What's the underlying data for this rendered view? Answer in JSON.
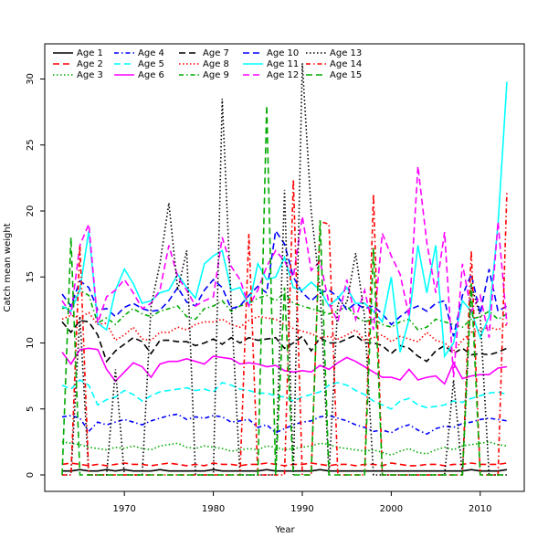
{
  "chart_data": {
    "type": "line",
    "title": "",
    "xlabel": "Year",
    "ylabel": "Catch mean weight",
    "xlim": [
      1963,
      2013
    ],
    "ylim": [
      -1,
      32
    ],
    "x_ticks": [
      1970,
      1980,
      1990,
      2000,
      2010
    ],
    "y_ticks": [
      0,
      5,
      10,
      15,
      20,
      25,
      30
    ],
    "grid": false,
    "legend_position": "top-left",
    "legend_columns": 5,
    "x": [
      1963,
      1964,
      1965,
      1966,
      1967,
      1968,
      1969,
      1970,
      1971,
      1972,
      1973,
      1974,
      1975,
      1976,
      1977,
      1978,
      1979,
      1980,
      1981,
      1982,
      1983,
      1984,
      1985,
      1986,
      1987,
      1988,
      1989,
      1990,
      1991,
      1992,
      1993,
      1994,
      1995,
      1996,
      1997,
      1998,
      1999,
      2000,
      2001,
      2002,
      2003,
      2004,
      2005,
      2006,
      2007,
      2008,
      2009,
      2010,
      2011,
      2012,
      2013
    ],
    "series": [
      {
        "name": "Age 1",
        "color": "#000000",
        "dash": "solid",
        "values": [
          0.3,
          0.3,
          0.4,
          0.3,
          0.3,
          0.4,
          0.3,
          0.4,
          0.3,
          0.3,
          0.3,
          0.4,
          0.3,
          0.3,
          0.3,
          0.3,
          0.3,
          0.4,
          0.3,
          0.3,
          0.3,
          0.3,
          0.3,
          0.4,
          0.3,
          0.3,
          0.3,
          0.3,
          0.3,
          0.4,
          0.3,
          0.3,
          0.3,
          0.3,
          0.3,
          0.3,
          0.3,
          0.3,
          0.3,
          0.3,
          0.3,
          0.3,
          0.3,
          0.3,
          0.3,
          0.3,
          0.4,
          0.3,
          0.3,
          0.3,
          0.4
        ]
      },
      {
        "name": "Age 2",
        "color": "#ff0000",
        "dash": "longdash",
        "values": [
          0.8,
          0.9,
          0.8,
          0.7,
          0.8,
          0.7,
          0.8,
          0.9,
          0.8,
          0.8,
          0.7,
          0.8,
          0.9,
          0.8,
          0.7,
          0.8,
          0.7,
          0.9,
          0.8,
          0.8,
          0.7,
          0.8,
          0.8,
          0.9,
          0.8,
          0.7,
          0.8,
          0.8,
          0.9,
          0.8,
          0.7,
          0.8,
          0.8,
          0.7,
          0.8,
          0.8,
          0.7,
          0.9,
          0.8,
          0.7,
          0.7,
          0.8,
          0.8,
          0.7,
          0.8,
          0.8,
          0.9,
          0.8,
          0.8,
          0.8,
          0.9
        ]
      },
      {
        "name": "Age 3",
        "color": "#00aa00",
        "dash": "dotted",
        "values": [
          2.5,
          2.4,
          2.3,
          2.1,
          2.0,
          1.9,
          2.1,
          2.0,
          2.2,
          2.0,
          1.9,
          2.2,
          2.3,
          2.4,
          2.1,
          2.0,
          2.2,
          2.1,
          2.0,
          1.8,
          1.9,
          2.0,
          1.9,
          2.2,
          2.1,
          1.9,
          2.0,
          2.1,
          2.2,
          2.4,
          2.3,
          2.1,
          2.0,
          1.9,
          1.8,
          1.9,
          1.7,
          1.5,
          1.8,
          2.0,
          1.7,
          1.6,
          1.9,
          2.1,
          1.9,
          2.2,
          2.3,
          2.4,
          2.5,
          2.3,
          2.2
        ]
      },
      {
        "name": "Age 4",
        "color": "#0000ff",
        "dash": "dashdot",
        "values": [
          4.4,
          4.5,
          4.3,
          3.3,
          4.0,
          3.8,
          4.0,
          4.2,
          4.0,
          3.8,
          4.1,
          4.3,
          4.5,
          4.6,
          4.2,
          4.4,
          4.3,
          4.5,
          4.4,
          4.0,
          4.1,
          4.2,
          3.6,
          3.8,
          3.2,
          3.5,
          3.8,
          4.0,
          4.1,
          4.4,
          4.5,
          4.3,
          4.1,
          3.8,
          3.6,
          3.3,
          3.4,
          3.2,
          3.6,
          3.8,
          3.4,
          3.1,
          3.5,
          3.7,
          3.6,
          3.9,
          4.0,
          4.2,
          4.3,
          4.2,
          4.1
        ]
      },
      {
        "name": "Age 5",
        "color": "#00ffff",
        "dash": "longdash",
        "values": [
          6.8,
          6.5,
          7.2,
          6.8,
          5.3,
          5.7,
          5.9,
          6.4,
          6.1,
          5.6,
          6.0,
          6.3,
          6.4,
          6.5,
          6.6,
          6.4,
          6.5,
          6.3,
          7.0,
          6.8,
          6.5,
          6.4,
          6.2,
          6.2,
          6.0,
          5.9,
          5.6,
          5.9,
          6.1,
          6.3,
          6.8,
          7.0,
          6.8,
          6.4,
          6.1,
          5.6,
          5.3,
          5.0,
          5.6,
          5.8,
          5.3,
          5.1,
          5.2,
          5.3,
          5.6,
          5.5,
          5.8,
          6.0,
          6.2,
          6.3,
          6.1
        ]
      },
      {
        "name": "Age 6",
        "color": "#ff00ff",
        "dash": "solid",
        "values": [
          9.3,
          8.4,
          9.5,
          9.6,
          9.5,
          8.0,
          7.1,
          7.8,
          8.5,
          8.2,
          7.4,
          8.4,
          8.6,
          8.6,
          8.8,
          8.6,
          8.4,
          9.0,
          8.9,
          8.8,
          8.4,
          8.5,
          8.4,
          8.2,
          8.3,
          7.9,
          7.8,
          7.9,
          7.8,
          8.3,
          8.0,
          8.5,
          8.9,
          8.6,
          8.2,
          7.8,
          7.4,
          7.4,
          7.2,
          8.0,
          7.2,
          7.4,
          7.5,
          6.9,
          8.5,
          7.3,
          7.5,
          7.6,
          7.6,
          8.1,
          8.2
        ]
      },
      {
        "name": "Age 7",
        "color": "#000000",
        "dash": "longdash",
        "values": [
          11.6,
          10.8,
          11.7,
          11.6,
          10.6,
          8.6,
          9.4,
          9.9,
          10.4,
          10.1,
          9.2,
          10.2,
          10.2,
          10.1,
          10.1,
          9.8,
          10.0,
          10.3,
          9.9,
          10.4,
          10.0,
          10.4,
          10.2,
          10.3,
          10.4,
          9.6,
          10.0,
          10.5,
          9.4,
          10.4,
          10.0,
          10.0,
          10.3,
          10.6,
          10.0,
          10.0,
          9.8,
          9.2,
          9.8,
          9.6,
          9.0,
          8.6,
          9.4,
          9.8,
          9.2,
          9.6,
          9.1,
          9.2,
          9.1,
          9.3,
          9.6
        ]
      },
      {
        "name": "Age 8",
        "color": "#ff0000",
        "dash": "dotted",
        "values": [
          11.8,
          12.1,
          11.9,
          12.3,
          11.4,
          11.5,
          10.2,
          10.6,
          11.2,
          10.3,
          10.2,
          10.8,
          10.8,
          11.2,
          11.0,
          11.4,
          11.6,
          11.6,
          11.8,
          11.4,
          11.2,
          11.7,
          12.0,
          11.9,
          11.8,
          11.4,
          11.1,
          10.9,
          10.7,
          10.4,
          10.5,
          10.3,
          10.6,
          11.0,
          10.2,
          10.4,
          10.6,
          10.1,
          10.5,
          10.3,
          10.1,
          10.8,
          10.2,
          10.0,
          9.4,
          10.2,
          10.8,
          11.0,
          11.2,
          11.0,
          11.4
        ]
      },
      {
        "name": "Age 9",
        "color": "#00aa00",
        "dash": "dashdot",
        "values": [
          12.6,
          12.8,
          14.0,
          13.6,
          11.5,
          11.9,
          11.4,
          12.1,
          12.6,
          12.2,
          12.0,
          12.4,
          12.6,
          12.8,
          12.0,
          11.8,
          12.6,
          12.8,
          13.2,
          12.4,
          12.8,
          13.0,
          13.4,
          13.6,
          13.2,
          13.8,
          13.0,
          12.8,
          12.6,
          12.4,
          12.2,
          12.4,
          12.8,
          12.0,
          11.6,
          11.8,
          11.4,
          11.2,
          11.6,
          11.8,
          11.0,
          11.2,
          11.8,
          11.6,
          11.4,
          11.2,
          11.8,
          12.0,
          12.4,
          11.8,
          12.2
        ]
      },
      {
        "name": "Age 10",
        "color": "#0000ff",
        "dash": "longdash",
        "values": [
          13.7,
          12.8,
          14.7,
          14.2,
          12.5,
          12.6,
          12.0,
          12.7,
          13.0,
          12.6,
          12.4,
          12.5,
          13.2,
          14.2,
          13.1,
          12.8,
          14.0,
          14.8,
          14.2,
          12.6,
          12.8,
          13.6,
          14.3,
          13.8,
          18.5,
          17.5,
          15.0,
          13.8,
          13.2,
          13.8,
          14.0,
          13.5,
          12.5,
          13.0,
          12.6,
          12.8,
          12.2,
          11.4,
          12.0,
          12.5,
          12.8,
          12.4,
          13.0,
          13.2,
          10.5,
          13.6,
          15.2,
          12.2,
          15.6,
          12.4,
          12.8
        ]
      },
      {
        "name": "Age 11",
        "color": "#00ffff",
        "dash": "solid",
        "values": [
          12.8,
          12.4,
          14.0,
          18.5,
          11.5,
          11.0,
          14.0,
          15.6,
          14.5,
          13.0,
          13.2,
          13.8,
          14.0,
          15.2,
          14.2,
          13.4,
          16.0,
          16.6,
          17.0,
          14.0,
          14.2,
          12.8,
          16.0,
          14.8,
          15.0,
          16.5,
          14.2,
          14.0,
          14.6,
          14.0,
          12.8,
          13.4,
          14.2,
          13.0,
          13.0,
          12.4,
          11.6,
          15.0,
          9.3,
          11.8,
          17.4,
          13.8,
          17.4,
          9.0,
          10.0,
          13.2,
          12.4,
          10.4,
          12.0,
          19.0,
          29.8
        ]
      },
      {
        "name": "Age 12",
        "color": "#ff00ff",
        "dash": "longdash",
        "values": [
          13.2,
          12.2,
          17.4,
          19.0,
          11.5,
          13.5,
          14.0,
          14.8,
          13.8,
          12.6,
          13.0,
          14.0,
          17.4,
          15.0,
          14.0,
          12.8,
          13.2,
          13.5,
          18.0,
          15.8,
          14.8,
          12.8,
          14.0,
          15.8,
          17.0,
          16.2,
          15.0,
          19.6,
          15.5,
          16.2,
          13.0,
          11.6,
          14.8,
          11.8,
          14.0,
          11.0,
          18.3,
          16.6,
          15.2,
          12.0,
          23.4,
          17.6,
          13.8,
          18.4,
          7.4,
          16.0,
          12.4,
          13.6,
          10.4,
          19.2,
          11.4
        ]
      },
      {
        "name": "Age 13",
        "color": "#000000",
        "dash": "dotted",
        "values": [
          0,
          0,
          12.0,
          0,
          0,
          0,
          8.0,
          0,
          0,
          0,
          12.8,
          16.0,
          20.6,
          14.0,
          17.0,
          0,
          0,
          0,
          28.5,
          13.0,
          0,
          0,
          0,
          0,
          0,
          21.6,
          0,
          31.2,
          20.0,
          14.0,
          0,
          13.0,
          13.0,
          16.8,
          12.0,
          0,
          0,
          0,
          0,
          0,
          0,
          0,
          0,
          0,
          7.2,
          0,
          14.4,
          12.0,
          0,
          0,
          0
        ]
      },
      {
        "name": "Age 14",
        "color": "#ff0000",
        "dash": "dashdot",
        "values": [
          0,
          0,
          17.4,
          0,
          0,
          0,
          0,
          0,
          0,
          0,
          0,
          0,
          0,
          0,
          0,
          0,
          0,
          0,
          0,
          0,
          0,
          18.3,
          0,
          0,
          0,
          0,
          22.4,
          0,
          0,
          19.2,
          19.0,
          0,
          0,
          0,
          0,
          21.3,
          0,
          0,
          0,
          0,
          0,
          0,
          0,
          0,
          0,
          0,
          17.0,
          0,
          0,
          0,
          21.5
        ]
      },
      {
        "name": "Age 15",
        "color": "#00aa00",
        "dash": "longdash",
        "values": [
          0,
          18.0,
          0,
          0,
          0,
          0,
          0,
          0,
          0,
          0,
          0,
          0,
          0,
          0,
          0,
          0,
          0,
          0,
          0,
          0,
          0,
          0,
          0,
          28.0,
          0,
          14.2,
          0,
          0,
          0,
          19.3,
          0,
          0,
          0,
          0,
          0,
          17.2,
          0,
          0,
          0,
          0,
          0,
          0,
          0,
          0,
          0,
          0,
          14.5,
          0,
          0,
          0,
          0
        ]
      }
    ]
  }
}
